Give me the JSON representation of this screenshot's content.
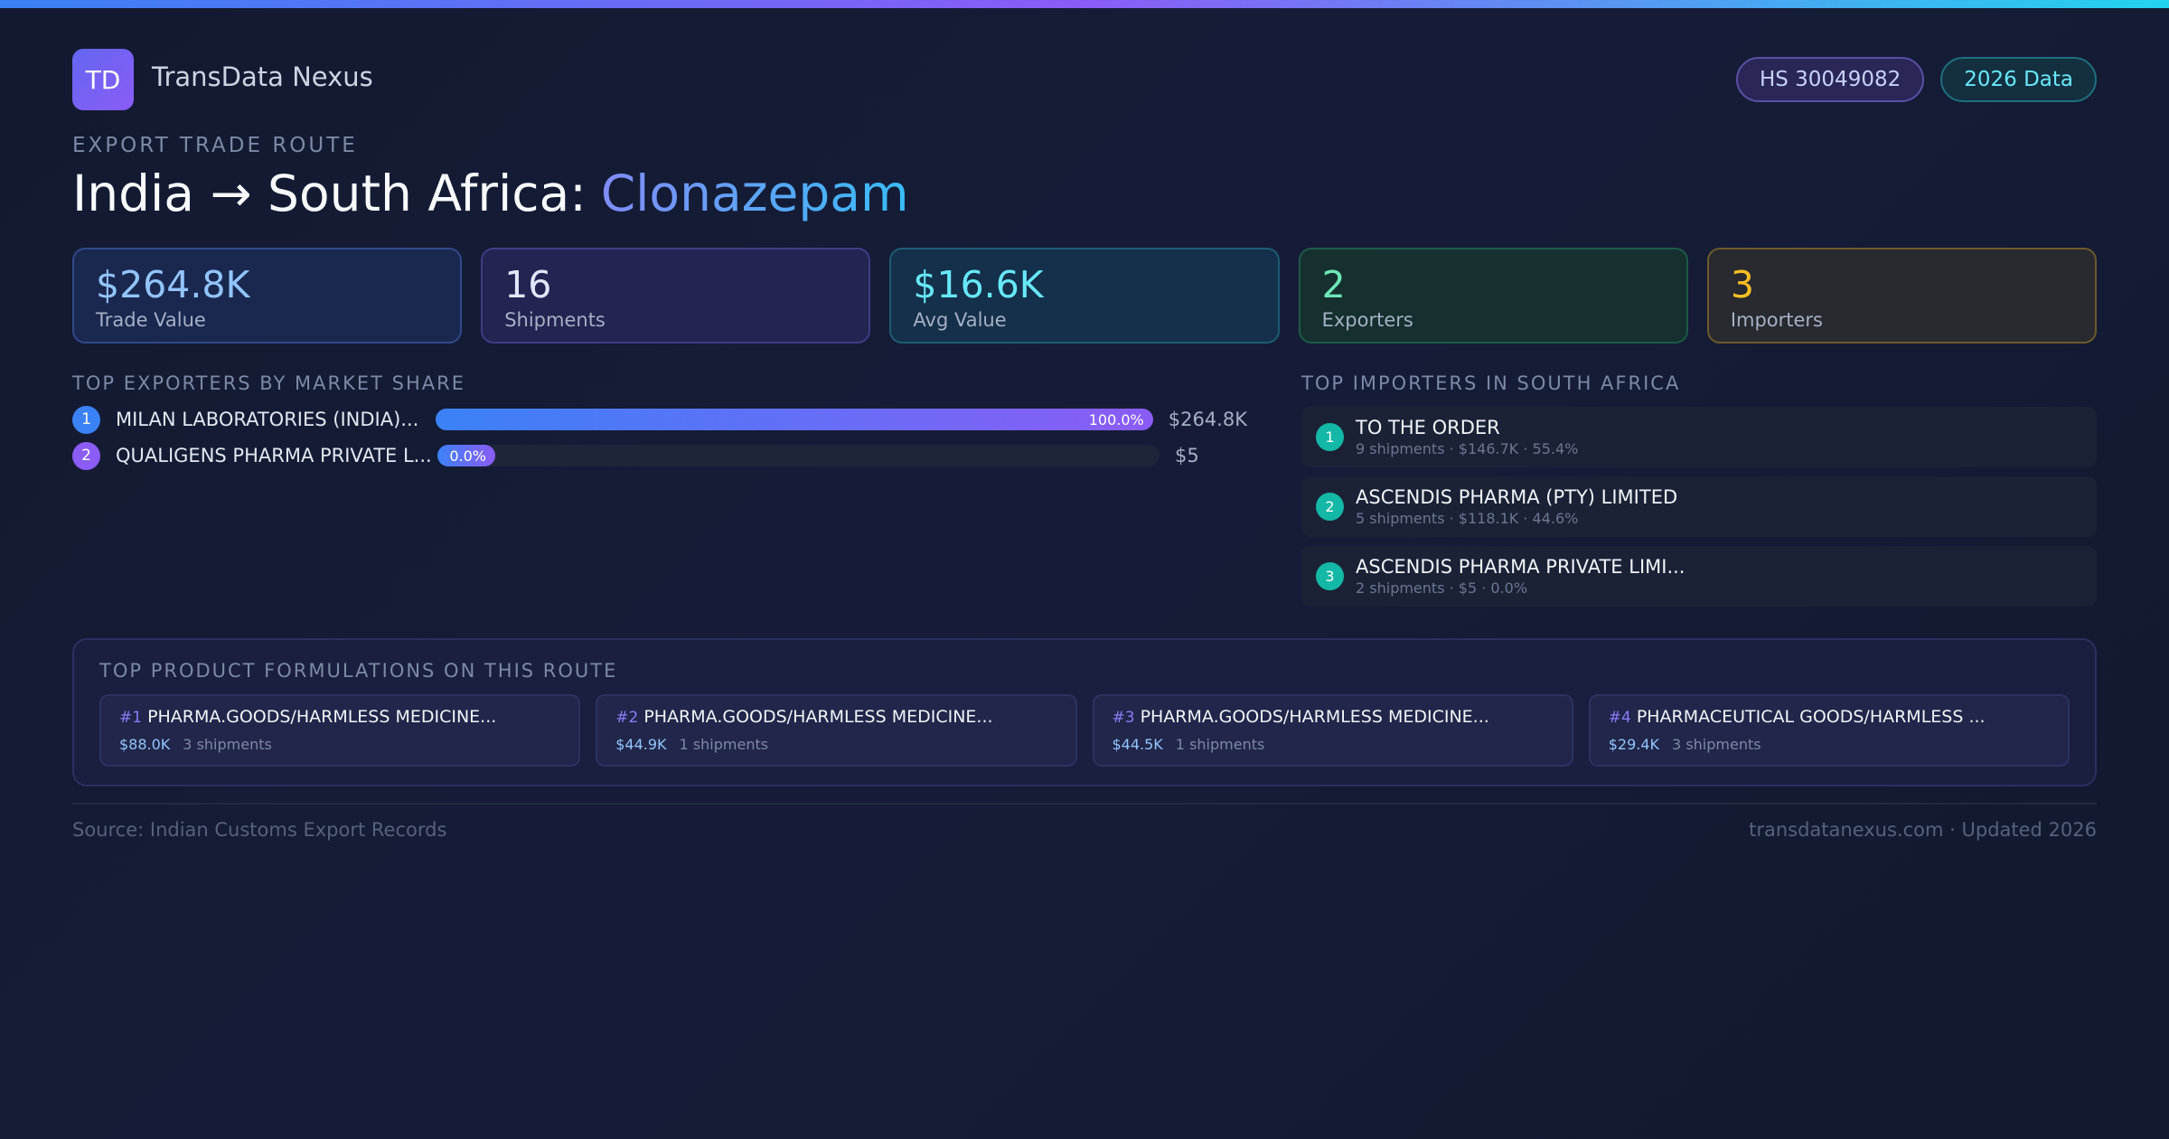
{
  "header": {
    "logo": "TD",
    "brand": "TransData Nexus",
    "badges": [
      "HS 30049082",
      "2026 Data"
    ]
  },
  "route": {
    "eyebrow": "EXPORT TRADE ROUTE",
    "title_prefix": "India → South Africa:",
    "product": "Clonazepam"
  },
  "stats": [
    {
      "value": "$264.8K",
      "label": "Trade Value"
    },
    {
      "value": "16",
      "label": "Shipments"
    },
    {
      "value": "$16.6K",
      "label": "Avg Value"
    },
    {
      "value": "2",
      "label": "Exporters"
    },
    {
      "value": "3",
      "label": "Importers"
    }
  ],
  "exporters": {
    "heading": "TOP EXPORTERS BY MARKET SHARE",
    "rows": [
      {
        "rank": 1,
        "name": "MILAN LABORATORIES (INDIA)...",
        "share": {
          "value": 100,
          "label": "100.0%"
        },
        "value": "$264.8K"
      },
      {
        "rank": 2,
        "name": "QUALIGENS PHARMA PRIVATE L...",
        "share": {
          "value": 0,
          "label": "0.0%"
        },
        "value": "$5"
      }
    ]
  },
  "importers": {
    "heading": "TOP IMPORTERS IN SOUTH AFRICA",
    "rows": [
      {
        "rank": 1,
        "name": "TO THE ORDER",
        "detail": "9 shipments · $146.7K · 55.4%"
      },
      {
        "rank": 2,
        "name": "ASCENDIS PHARMA (PTY) LIMITED",
        "detail": "5 shipments · $118.1K · 44.6%"
      },
      {
        "rank": 3,
        "name": "ASCENDIS PHARMA PRIVATE LIMI...",
        "detail": "2 shipments · $5 · 0.0%"
      }
    ]
  },
  "formulations": {
    "heading": "TOP PRODUCT FORMULATIONS ON THIS ROUTE",
    "items": [
      {
        "rank": "#1",
        "name": "PHARMA.GOODS/HARMLESS MEDICINE...",
        "value": "$88.0K",
        "shipments": "3 shipments"
      },
      {
        "rank": "#2",
        "name": "PHARMA.GOODS/HARMLESS MEDICINE...",
        "value": "$44.9K",
        "shipments": "1 shipments"
      },
      {
        "rank": "#3",
        "name": "PHARMA.GOODS/HARMLESS MEDICINE...",
        "value": "$44.5K",
        "shipments": "1 shipments"
      },
      {
        "rank": "#4",
        "name": "PHARMACEUTICAL GOODS/HARMLESS ...",
        "value": "$29.4K",
        "shipments": "3 shipments"
      }
    ]
  },
  "footer": {
    "source": "Source: Indian Customs Export Records",
    "site": "transdatanexus.com · Updated 2026"
  }
}
